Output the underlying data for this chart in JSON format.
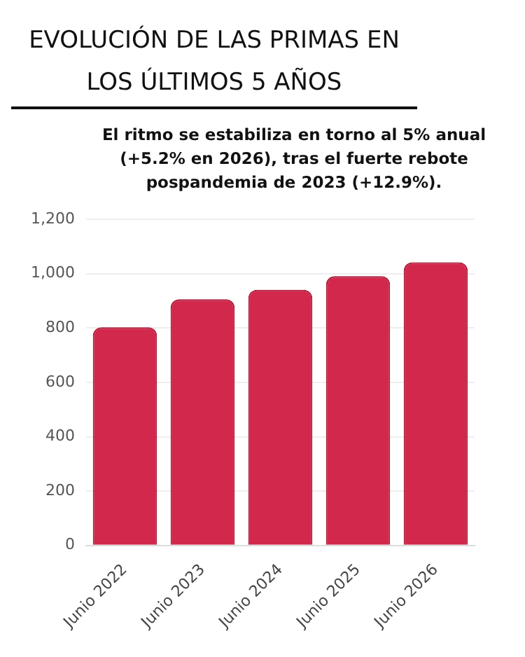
{
  "chart_data": {
    "type": "bar",
    "title": "EVOLUCIÓN DE LAS PRIMAS EN LOS ÚLTIMOS 5 AÑOS",
    "subtitle": "El ritmo se estabiliza en torno al 5% anual (+5.2% en 2026), tras el fuerte rebote pospandemia de 2023 (+12.9%).",
    "categories": [
      "Junio 2022",
      "Junio 2023",
      "Junio 2024",
      "Junio 2025",
      "Junio 2026"
    ],
    "values": [
      803,
      906,
      941,
      991,
      1042
    ],
    "color": "#d2284b",
    "ylim": [
      0,
      1200
    ],
    "yticks": [
      0,
      200,
      400,
      600,
      800,
      {
        "value": 1000,
        "label": "1,000"
      },
      {
        "value": 1200,
        "label": "1,200"
      }
    ],
    "grid": "y",
    "legend": false
  }
}
